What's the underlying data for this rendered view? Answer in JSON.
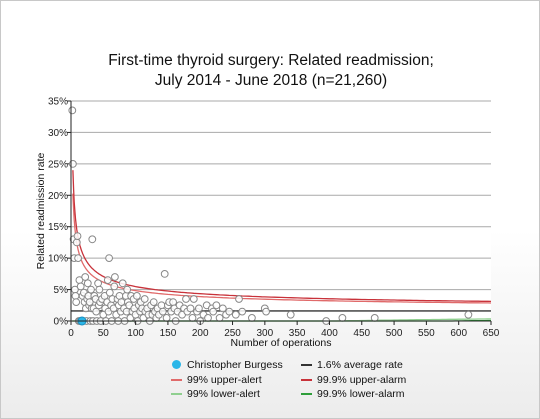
{
  "chart_data": {
    "type": "scatter",
    "title_line1": "First-time thyroid surgery: Related readmission;",
    "title_line2": "July 2014 - June 2018 (n=21,260)",
    "xlabel": "Number of operations",
    "ylabel": "Related readmission rate",
    "xlim": [
      0,
      650
    ],
    "ylim": [
      0,
      35
    ],
    "x_ticks": [
      "0",
      "50",
      "100",
      "150",
      "200",
      "250",
      "300",
      "350",
      "400",
      "450",
      "500",
      "550",
      "600",
      "650"
    ],
    "y_ticks": [
      "0%",
      "5%",
      "10%",
      "15%",
      "20%",
      "25%",
      "30%",
      "35%"
    ],
    "grid": "horizontal",
    "average_rate": 1.6,
    "colors": {
      "highlight": "#2bb6e8",
      "average": "#333333",
      "alert": "#e06a6a",
      "alarm": "#c8323a",
      "lower_alert": "#8fcf8f",
      "lower_alarm": "#2e9e3a",
      "points": "#888888"
    },
    "highlight_point": {
      "name": "Christopher Burgess",
      "x": 17,
      "y": 0
    },
    "points": [
      [
        2,
        33.5
      ],
      [
        3,
        25
      ],
      [
        4,
        13
      ],
      [
        5,
        10
      ],
      [
        6,
        5
      ],
      [
        7,
        4
      ],
      [
        8,
        3
      ],
      [
        9,
        12.5
      ],
      [
        10,
        13.5
      ],
      [
        11,
        10
      ],
      [
        12,
        0
      ],
      [
        13,
        6.5
      ],
      [
        14,
        0
      ],
      [
        15,
        5.5
      ],
      [
        16,
        0
      ],
      [
        18,
        4
      ],
      [
        19,
        0
      ],
      [
        20,
        4.5
      ],
      [
        21,
        3
      ],
      [
        22,
        7
      ],
      [
        23,
        2
      ],
      [
        24,
        0
      ],
      [
        25,
        3.5
      ],
      [
        26,
        6
      ],
      [
        27,
        4
      ],
      [
        28,
        2.5
      ],
      [
        29,
        3
      ],
      [
        30,
        0
      ],
      [
        31,
        5
      ],
      [
        32,
        2
      ],
      [
        33,
        13
      ],
      [
        34,
        0
      ],
      [
        35,
        2
      ],
      [
        36,
        4
      ],
      [
        38,
        3.5
      ],
      [
        39,
        1.5
      ],
      [
        40,
        0
      ],
      [
        42,
        6
      ],
      [
        43,
        2.5
      ],
      [
        44,
        5
      ],
      [
        45,
        3
      ],
      [
        46,
        0
      ],
      [
        48,
        3.5
      ],
      [
        50,
        1
      ],
      [
        52,
        4
      ],
      [
        53,
        2
      ],
      [
        54,
        0
      ],
      [
        56,
        3
      ],
      [
        57,
        6.5
      ],
      [
        58,
        1.5
      ],
      [
        59,
        10
      ],
      [
        60,
        4.5
      ],
      [
        62,
        2.5
      ],
      [
        63,
        0
      ],
      [
        64,
        3.5
      ],
      [
        66,
        2
      ],
      [
        67,
        5.5
      ],
      [
        68,
        7
      ],
      [
        70,
        1
      ],
      [
        72,
        3.5
      ],
      [
        73,
        0
      ],
      [
        74,
        2.5
      ],
      [
        75,
        4
      ],
      [
        77,
        1.5
      ],
      [
        78,
        3
      ],
      [
        80,
        6
      ],
      [
        82,
        2
      ],
      [
        83,
        0
      ],
      [
        85,
        4
      ],
      [
        86,
        1.5
      ],
      [
        87,
        5
      ],
      [
        88,
        3
      ],
      [
        90,
        2.5
      ],
      [
        92,
        0.5
      ],
      [
        93,
        4
      ],
      [
        95,
        1.5
      ],
      [
        97,
        3.5
      ],
      [
        98,
        2
      ],
      [
        100,
        1
      ],
      [
        102,
        4
      ],
      [
        103,
        0
      ],
      [
        105,
        2.5
      ],
      [
        107,
        1.5
      ],
      [
        108,
        3
      ],
      [
        110,
        2
      ],
      [
        112,
        0.5
      ],
      [
        114,
        3.5
      ],
      [
        115,
        1.5
      ],
      [
        118,
        2
      ],
      [
        120,
        1
      ],
      [
        122,
        0
      ],
      [
        124,
        2.5
      ],
      [
        126,
        1
      ],
      [
        128,
        3
      ],
      [
        130,
        1.5
      ],
      [
        132,
        0.5
      ],
      [
        134,
        2
      ],
      [
        136,
        1
      ],
      [
        140,
        2.5
      ],
      [
        142,
        1.5
      ],
      [
        145,
        7.5
      ],
      [
        148,
        0.5
      ],
      [
        150,
        2.5
      ],
      [
        152,
        3
      ],
      [
        155,
        1.5
      ],
      [
        158,
        3
      ],
      [
        160,
        2
      ],
      [
        162,
        0
      ],
      [
        165,
        1.5
      ],
      [
        168,
        2.5
      ],
      [
        172,
        1
      ],
      [
        175,
        2
      ],
      [
        178,
        3.5
      ],
      [
        180,
        1.5
      ],
      [
        185,
        2
      ],
      [
        188,
        0.5
      ],
      [
        190,
        3.5
      ],
      [
        195,
        1.5
      ],
      [
        198,
        2
      ],
      [
        200,
        0
      ],
      [
        205,
        1
      ],
      [
        210,
        2.5
      ],
      [
        212,
        0.5
      ],
      [
        218,
        2
      ],
      [
        220,
        1.5
      ],
      [
        225,
        2.5
      ],
      [
        230,
        0.5
      ],
      [
        235,
        2
      ],
      [
        240,
        1
      ],
      [
        245,
        1.5
      ],
      [
        255,
        1
      ],
      [
        260,
        3.5
      ],
      [
        265,
        1.5
      ],
      [
        280,
        0.5
      ],
      [
        300,
        2
      ],
      [
        302,
        1.5
      ],
      [
        340,
        1
      ],
      [
        395,
        0
      ],
      [
        420,
        0.5
      ],
      [
        470,
        0.5
      ],
      [
        615,
        1
      ]
    ]
  },
  "legend": [
    {
      "label": "Christopher Burgess",
      "kind": "dot",
      "color_key": "highlight"
    },
    {
      "label": "1.6% average rate",
      "kind": "line",
      "color_key": "average"
    },
    {
      "label": "99% upper-alert",
      "kind": "line",
      "color_key": "alert"
    },
    {
      "label": "99.9% upper-alarm",
      "kind": "line",
      "color_key": "alarm"
    },
    {
      "label": "99% lower-alert",
      "kind": "line",
      "color_key": "lower_alert"
    },
    {
      "label": "99.9% lower-alarm",
      "kind": "line",
      "color_key": "lower_alarm"
    }
  ]
}
